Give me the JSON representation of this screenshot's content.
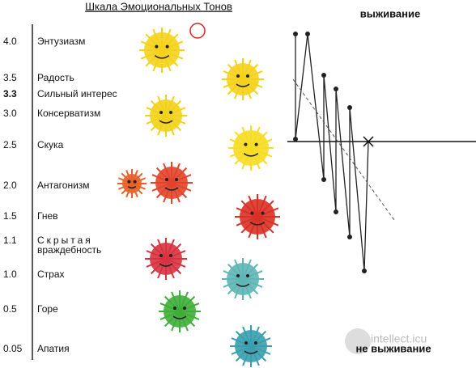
{
  "title": "Шкала Эмоциональных Тонов",
  "levels": [
    {
      "value": "4.0",
      "label": "Энтузиазм"
    },
    {
      "value": "3.5",
      "label": "Радость"
    },
    {
      "value": "3.3",
      "label": "Сильный интерес"
    },
    {
      "value": "3.0",
      "label": "Консерватизм"
    },
    {
      "value": "2.5",
      "label": "Скука"
    },
    {
      "value": "2.0",
      "label": "Антагонизм"
    },
    {
      "value": "1.5",
      "label": "Гнев"
    },
    {
      "value": "1.1",
      "label": "Скрытая",
      "label2": "враждебность"
    },
    {
      "value": "1.0",
      "label": "Страх"
    },
    {
      "value": "0.5",
      "label": "Горе"
    },
    {
      "value": "0.05",
      "label": "Апатия"
    }
  ],
  "survival_label": "выживание",
  "non_survival_label": "не выживание",
  "watermark": "intellect.icu"
}
